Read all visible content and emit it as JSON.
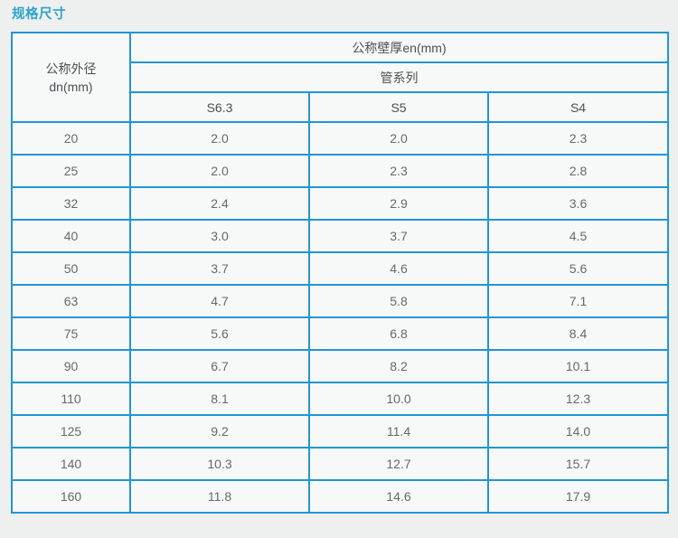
{
  "page": {
    "title": "规格尺寸"
  },
  "colors": {
    "title_accent": "#2ba4c7",
    "table_border": "#2196d3",
    "cell_background": "#f7f8f8",
    "page_background": "#eef0f0",
    "header_text": "#4d5154",
    "data_text": "#66696c"
  },
  "table": {
    "header": {
      "outer_diameter_line1": "公称外径",
      "outer_diameter_line2": "dn(mm)",
      "wall_thickness": "公称壁厚en(mm)",
      "pipe_series": "管系列",
      "series": [
        "S6.3",
        "S5",
        "S4"
      ]
    },
    "rows": [
      [
        "20",
        "2.0",
        "2.0",
        "2.3"
      ],
      [
        "25",
        "2.0",
        "2.3",
        "2.8"
      ],
      [
        "32",
        "2.4",
        "2.9",
        "3.6"
      ],
      [
        "40",
        "3.0",
        "3.7",
        "4.5"
      ],
      [
        "50",
        "3.7",
        "4.6",
        "5.6"
      ],
      [
        "63",
        "4.7",
        "5.8",
        "7.1"
      ],
      [
        "75",
        "5.6",
        "6.8",
        "8.4"
      ],
      [
        "90",
        "6.7",
        "8.2",
        "10.1"
      ],
      [
        "110",
        "8.1",
        "10.0",
        "12.3"
      ],
      [
        "125",
        "9.2",
        "11.4",
        "14.0"
      ],
      [
        "140",
        "10.3",
        "12.7",
        "15.7"
      ],
      [
        "160",
        "11.8",
        "14.6",
        "17.9"
      ]
    ]
  },
  "chart_data": {
    "type": "table",
    "title": "规格尺寸",
    "column_group_label": "公称壁厚en(mm)",
    "sub_group_label": "管系列",
    "columns": [
      "公称外径 dn(mm)",
      "S6.3",
      "S5",
      "S4"
    ],
    "rows": [
      [
        20,
        2.0,
        2.0,
        2.3
      ],
      [
        25,
        2.0,
        2.3,
        2.8
      ],
      [
        32,
        2.4,
        2.9,
        3.6
      ],
      [
        40,
        3.0,
        3.7,
        4.5
      ],
      [
        50,
        3.7,
        4.6,
        5.6
      ],
      [
        63,
        4.7,
        5.8,
        7.1
      ],
      [
        75,
        5.6,
        6.8,
        8.4
      ],
      [
        90,
        6.7,
        8.2,
        10.1
      ],
      [
        110,
        8.1,
        10.0,
        12.3
      ],
      [
        125,
        9.2,
        11.4,
        14.0
      ],
      [
        140,
        10.3,
        12.7,
        15.7
      ],
      [
        160,
        11.8,
        14.6,
        17.9
      ]
    ]
  }
}
